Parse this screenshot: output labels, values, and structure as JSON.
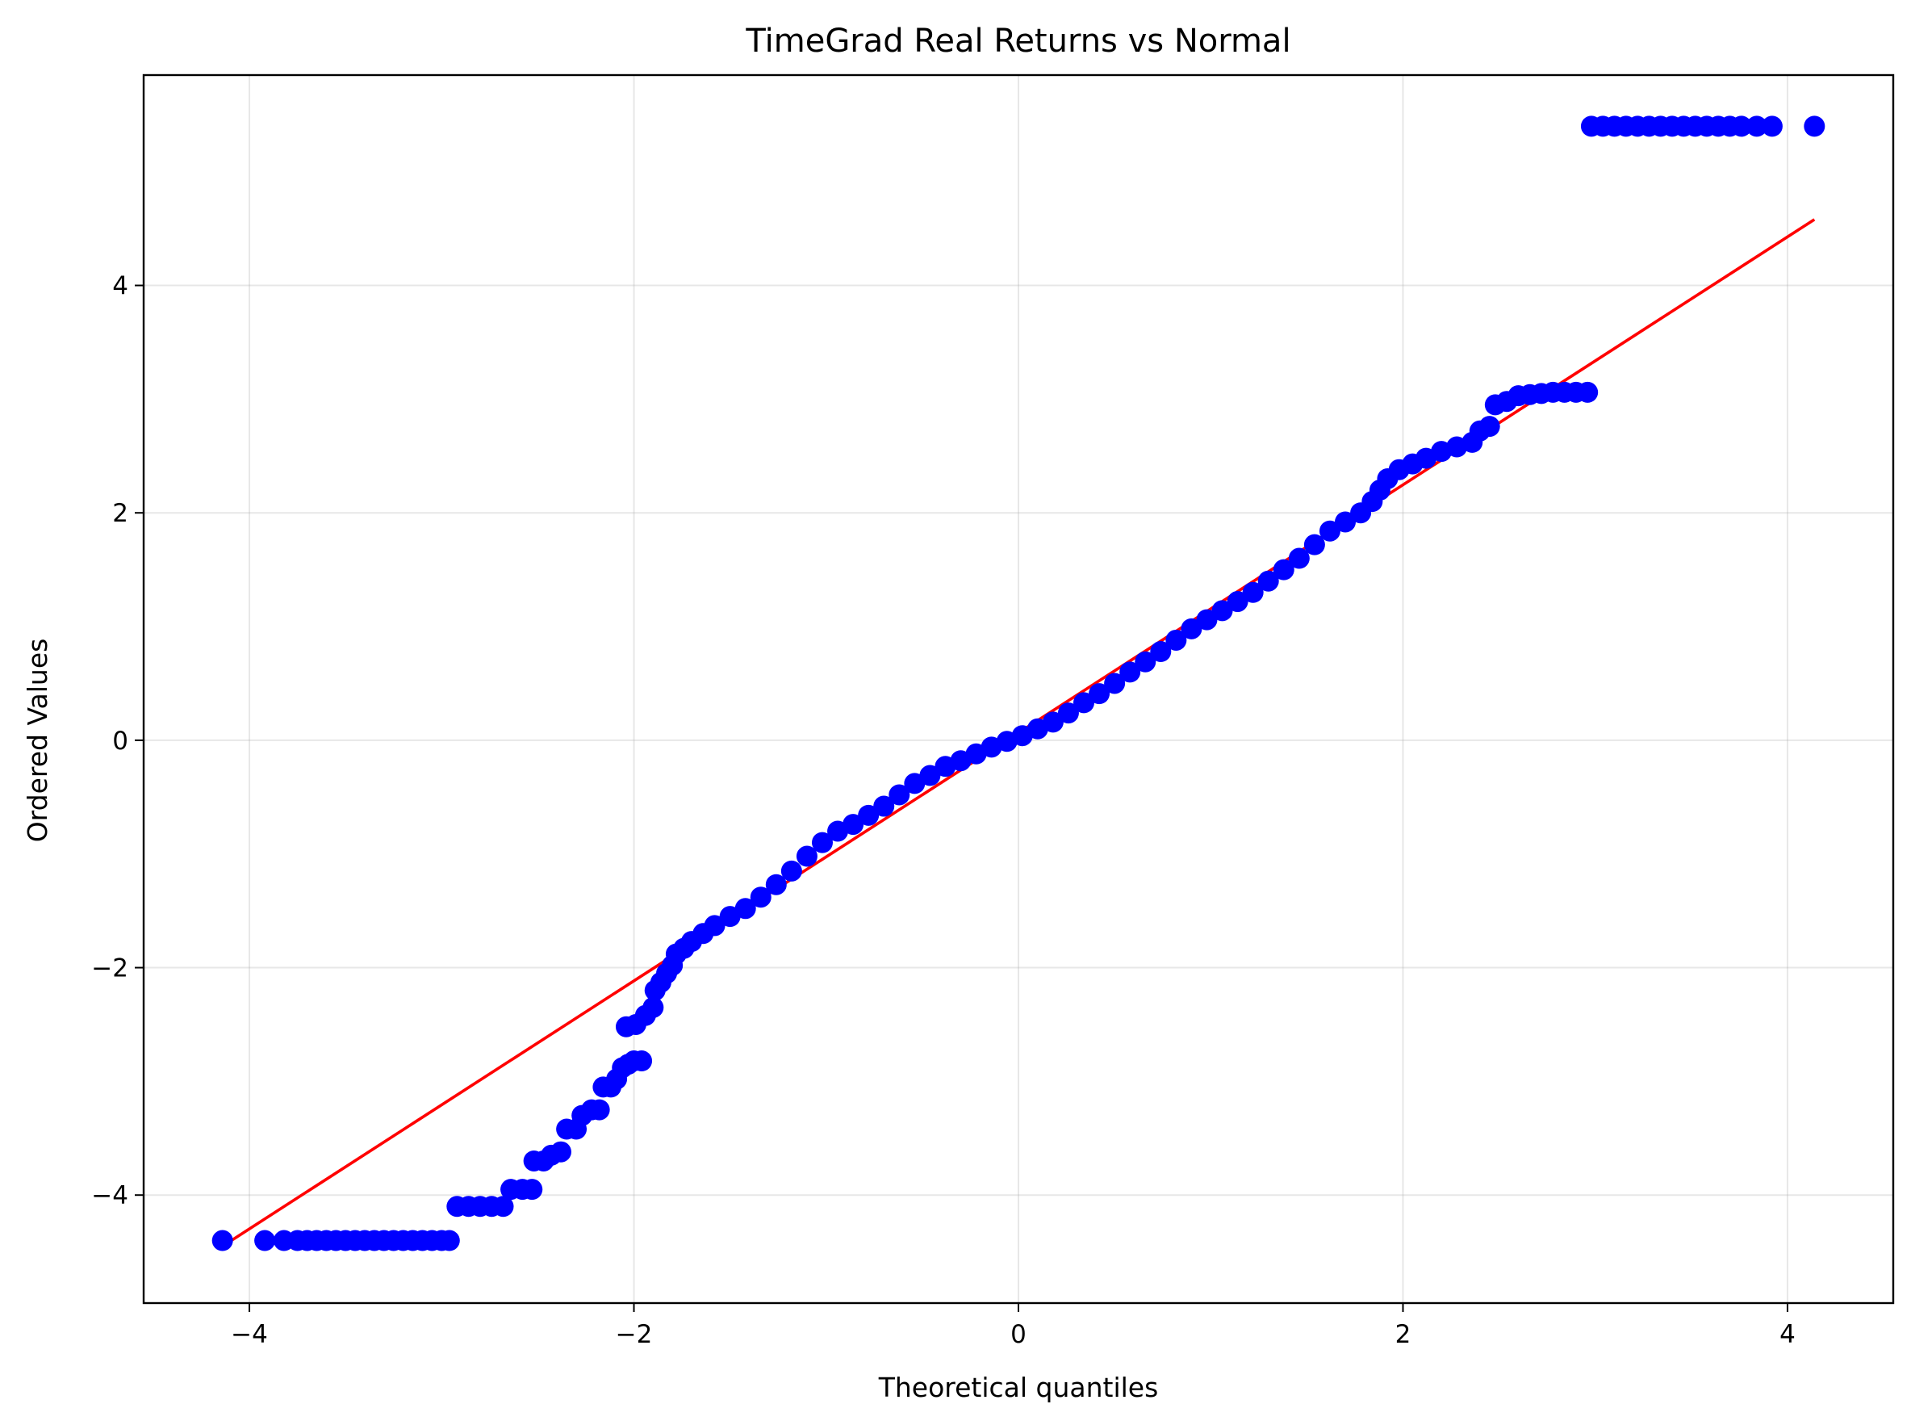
{
  "chart_data": {
    "type": "scatter",
    "title": "TimeGrad Real Returns vs Normal",
    "xlabel": "Theoretical quantiles",
    "ylabel": "Ordered Values",
    "xlim": [
      -4.55,
      4.55
    ],
    "ylim": [
      -4.95,
      5.85
    ],
    "xticks": [
      -4,
      -2,
      0,
      2,
      4
    ],
    "yticks": [
      -4,
      -2,
      0,
      2,
      4
    ],
    "xtick_labels": [
      "−4",
      "−2",
      "0",
      "2",
      "4"
    ],
    "ytick_labels": [
      "−4",
      "−2",
      "0",
      "2",
      "4"
    ],
    "grid": true,
    "series": [
      {
        "kind": "scatter",
        "color": "#0000ff",
        "points": [
          [
            -4.14,
            -4.4
          ],
          [
            -3.92,
            -4.4
          ],
          [
            -3.82,
            -4.4
          ],
          [
            -3.75,
            -4.4
          ],
          [
            -3.7,
            -4.4
          ],
          [
            -3.65,
            -4.4
          ],
          [
            -3.6,
            -4.4
          ],
          [
            -3.55,
            -4.4
          ],
          [
            -3.5,
            -4.4
          ],
          [
            -3.45,
            -4.4
          ],
          [
            -3.4,
            -4.4
          ],
          [
            -3.35,
            -4.4
          ],
          [
            -3.3,
            -4.4
          ],
          [
            -3.25,
            -4.4
          ],
          [
            -3.2,
            -4.4
          ],
          [
            -3.15,
            -4.4
          ],
          [
            -3.1,
            -4.4
          ],
          [
            -3.05,
            -4.4
          ],
          [
            -3.0,
            -4.4
          ],
          [
            -2.96,
            -4.4
          ],
          [
            -2.92,
            -4.1
          ],
          [
            -2.86,
            -4.1
          ],
          [
            -2.8,
            -4.1
          ],
          [
            -2.74,
            -4.1
          ],
          [
            -2.68,
            -4.1
          ],
          [
            -2.64,
            -3.95
          ],
          [
            -2.58,
            -3.95
          ],
          [
            -2.53,
            -3.95
          ],
          [
            -2.52,
            -3.7
          ],
          [
            -2.47,
            -3.7
          ],
          [
            -2.43,
            -3.65
          ],
          [
            -2.38,
            -3.62
          ],
          [
            -2.35,
            -3.42
          ],
          [
            -2.3,
            -3.42
          ],
          [
            -2.27,
            -3.3
          ],
          [
            -2.22,
            -3.25
          ],
          [
            -2.18,
            -3.25
          ],
          [
            -2.16,
            -3.05
          ],
          [
            -2.12,
            -3.05
          ],
          [
            -2.09,
            -2.98
          ],
          [
            -2.06,
            -2.88
          ],
          [
            -2.03,
            -2.85
          ],
          [
            -2.0,
            -2.82
          ],
          [
            -1.96,
            -2.82
          ],
          [
            -2.04,
            -2.52
          ],
          [
            -1.99,
            -2.5
          ],
          [
            -1.94,
            -2.42
          ],
          [
            -1.9,
            -2.35
          ],
          [
            -1.89,
            -2.2
          ],
          [
            -1.86,
            -2.13
          ],
          [
            -1.83,
            -2.05
          ],
          [
            -1.8,
            -1.98
          ],
          [
            -1.78,
            -1.88
          ],
          [
            -1.74,
            -1.83
          ],
          [
            -1.7,
            -1.77
          ],
          [
            -1.64,
            -1.7
          ],
          [
            -1.58,
            -1.63
          ],
          [
            -1.5,
            -1.55
          ],
          [
            -1.42,
            -1.48
          ],
          [
            -1.34,
            -1.38
          ],
          [
            -1.26,
            -1.27
          ],
          [
            -1.18,
            -1.15
          ],
          [
            -1.1,
            -1.02
          ],
          [
            -1.02,
            -0.9
          ],
          [
            -0.94,
            -0.8
          ],
          [
            -0.86,
            -0.74
          ],
          [
            -0.78,
            -0.66
          ],
          [
            -0.7,
            -0.58
          ],
          [
            -0.62,
            -0.48
          ],
          [
            -0.54,
            -0.38
          ],
          [
            -0.46,
            -0.31
          ],
          [
            -0.38,
            -0.23
          ],
          [
            -0.3,
            -0.18
          ],
          [
            -0.22,
            -0.12
          ],
          [
            -0.14,
            -0.06
          ],
          [
            -0.06,
            -0.01
          ],
          [
            0.02,
            0.04
          ],
          [
            0.1,
            0.1
          ],
          [
            0.18,
            0.16
          ],
          [
            0.26,
            0.24
          ],
          [
            0.34,
            0.33
          ],
          [
            0.42,
            0.41
          ],
          [
            0.5,
            0.5
          ],
          [
            0.58,
            0.6
          ],
          [
            0.66,
            0.69
          ],
          [
            0.74,
            0.78
          ],
          [
            0.82,
            0.88
          ],
          [
            0.9,
            0.98
          ],
          [
            0.98,
            1.06
          ],
          [
            1.06,
            1.14
          ],
          [
            1.14,
            1.22
          ],
          [
            1.22,
            1.3
          ],
          [
            1.3,
            1.4
          ],
          [
            1.38,
            1.5
          ],
          [
            1.46,
            1.6
          ],
          [
            1.54,
            1.72
          ],
          [
            1.62,
            1.84
          ],
          [
            1.7,
            1.92
          ],
          [
            1.78,
            2.0
          ],
          [
            1.84,
            2.1
          ],
          [
            1.88,
            2.2
          ],
          [
            1.92,
            2.3
          ],
          [
            1.98,
            2.38
          ],
          [
            2.05,
            2.43
          ],
          [
            2.12,
            2.48
          ],
          [
            2.2,
            2.54
          ],
          [
            2.28,
            2.58
          ],
          [
            2.36,
            2.62
          ],
          [
            2.4,
            2.72
          ],
          [
            2.45,
            2.76
          ],
          [
            2.48,
            2.95
          ],
          [
            2.54,
            2.98
          ],
          [
            2.6,
            3.03
          ],
          [
            2.66,
            3.04
          ],
          [
            2.72,
            3.05
          ],
          [
            2.78,
            3.06
          ],
          [
            2.84,
            3.06
          ],
          [
            2.9,
            3.06
          ],
          [
            2.96,
            3.06
          ],
          [
            2.98,
            5.4
          ],
          [
            3.04,
            5.4
          ],
          [
            3.1,
            5.4
          ],
          [
            3.16,
            5.4
          ],
          [
            3.22,
            5.4
          ],
          [
            3.28,
            5.4
          ],
          [
            3.34,
            5.4
          ],
          [
            3.4,
            5.4
          ],
          [
            3.46,
            5.4
          ],
          [
            3.52,
            5.4
          ],
          [
            3.58,
            5.4
          ],
          [
            3.64,
            5.4
          ],
          [
            3.7,
            5.4
          ],
          [
            3.76,
            5.4
          ],
          [
            3.84,
            5.4
          ],
          [
            3.92,
            5.4
          ],
          [
            4.14,
            5.4
          ]
        ]
      },
      {
        "kind": "line",
        "color": "#ff0000",
        "x": [
          -4.14,
          4.14
        ],
        "y": [
          -4.45,
          4.58
        ]
      }
    ]
  }
}
